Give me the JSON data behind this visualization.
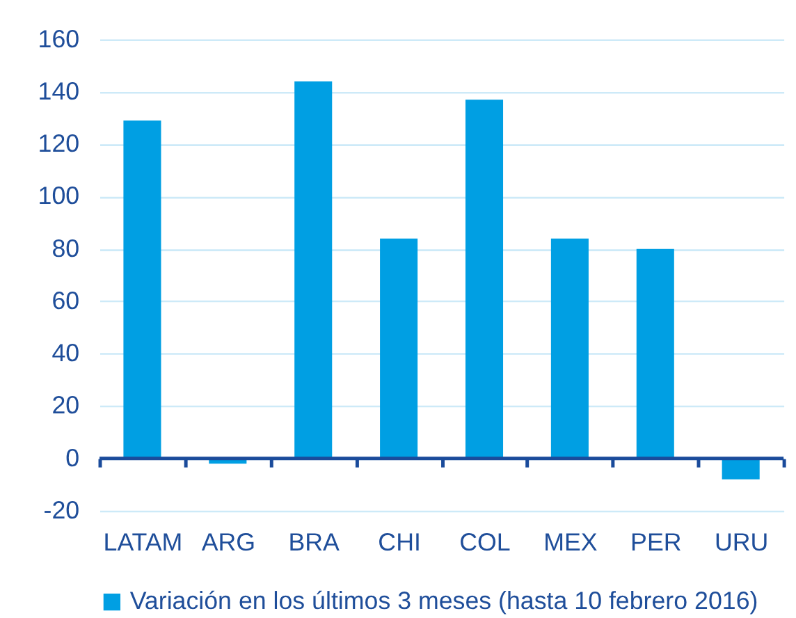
{
  "chart_data": {
    "type": "bar",
    "categories": [
      "LATAM",
      "ARG",
      "BRA",
      "CHI",
      "COL",
      "MEX",
      "PER",
      "URU"
    ],
    "series": [
      {
        "name": "Variación en los últimos 3 meses (hasta 10 febrero 2016)",
        "color": "#009fe3",
        "values": [
          129,
          -2,
          144,
          84,
          137,
          84,
          80,
          -8
        ]
      }
    ],
    "ylim": [
      -20,
      160
    ],
    "yticks": [
      -20,
      0,
      20,
      40,
      60,
      80,
      100,
      120,
      140,
      160
    ],
    "ref_lines": [
      {
        "axis": "y",
        "value": 0,
        "color": "#1a4b9b"
      }
    ],
    "grid": "y",
    "legend": "bottom"
  }
}
